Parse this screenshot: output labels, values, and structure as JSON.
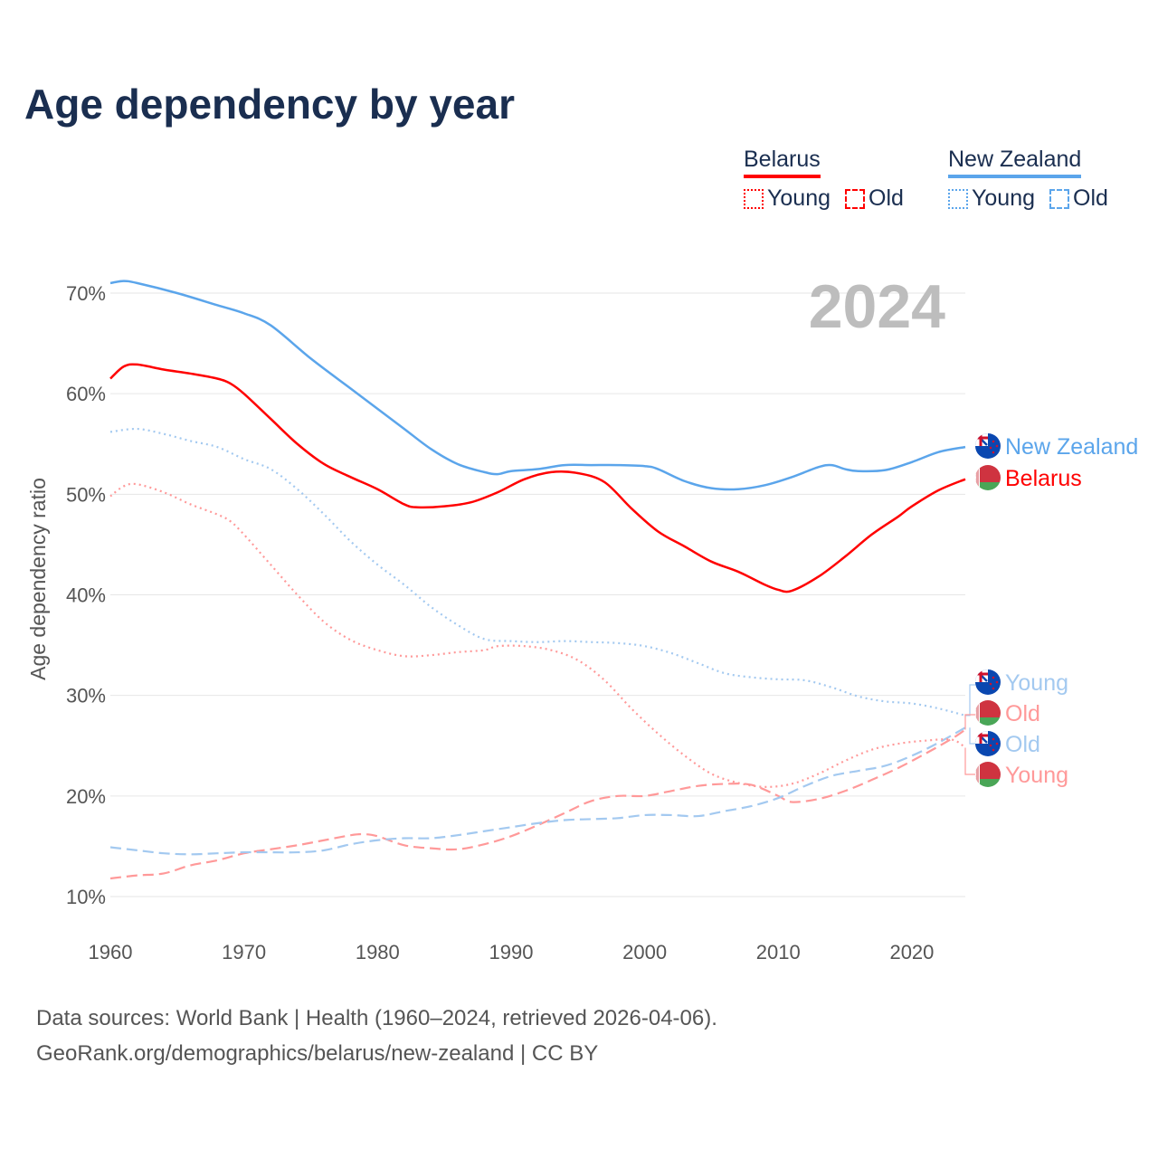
{
  "title": "Age dependency by year",
  "legend": {
    "groups": [
      {
        "name": "Belarus",
        "color": "#ff0000",
        "light": "#ff9999",
        "items": [
          "Young",
          "Old"
        ]
      },
      {
        "name": "New Zealand",
        "color": "#5ba5eb",
        "light": "#a3c9f0",
        "items": [
          "Young",
          "Old"
        ]
      }
    ]
  },
  "footer": {
    "line1": "Data sources: World Bank | Health (1960–2024, retrieved 2026-04-06).",
    "line2": "GeoRank.org/demographics/belarus/new-zealand | CC BY"
  },
  "end_labels": [
    {
      "text": "New Zealand",
      "country": "New Zealand",
      "color": "#5ba5eb"
    },
    {
      "text": "Belarus",
      "country": "Belarus",
      "color": "#ff0000"
    },
    {
      "text": "Young",
      "country": "New Zealand",
      "color": "#a3c9f0"
    },
    {
      "text": "Old",
      "country": "Belarus",
      "color": "#ff9999"
    },
    {
      "text": "Old",
      "country": "New Zealand",
      "color": "#a3c9f0"
    },
    {
      "text": "Young",
      "country": "Belarus",
      "color": "#ff9999"
    }
  ],
  "chart_data": {
    "type": "line",
    "title": "Age dependency by year",
    "year_label": "2024",
    "xlabel": "",
    "ylabel": "Age dependency ratio",
    "xlim": [
      1960,
      2024
    ],
    "ylim": [
      10,
      70
    ],
    "xticks": [
      1960,
      1970,
      1980,
      1990,
      2000,
      2010,
      2020
    ],
    "yticks": [
      "10%",
      "20%",
      "30%",
      "40%",
      "50%",
      "60%",
      "70%"
    ],
    "yticks_values": [
      10,
      20,
      30,
      40,
      50,
      60,
      70
    ],
    "grid": true,
    "legend_position": "top-right",
    "series": [
      {
        "name": "New Zealand",
        "style": "solid",
        "color": "#5ba5eb",
        "points": [
          [
            1960,
            71.0
          ],
          [
            1961,
            71.2
          ],
          [
            1962,
            71.0
          ],
          [
            1965,
            70.0
          ],
          [
            1968,
            68.8
          ],
          [
            1970,
            68.0
          ],
          [
            1972,
            66.8
          ],
          [
            1975,
            63.5
          ],
          [
            1978,
            60.5
          ],
          [
            1980,
            58.5
          ],
          [
            1982,
            56.5
          ],
          [
            1984,
            54.5
          ],
          [
            1986,
            53.0
          ],
          [
            1988,
            52.2
          ],
          [
            1989,
            52.0
          ],
          [
            1990,
            52.3
          ],
          [
            1992,
            52.5
          ],
          [
            1994,
            52.9
          ],
          [
            1996,
            52.9
          ],
          [
            1998,
            52.9
          ],
          [
            2000,
            52.8
          ],
          [
            2001,
            52.5
          ],
          [
            2003,
            51.3
          ],
          [
            2005,
            50.6
          ],
          [
            2007,
            50.5
          ],
          [
            2009,
            50.9
          ],
          [
            2011,
            51.7
          ],
          [
            2013,
            52.7
          ],
          [
            2014,
            52.9
          ],
          [
            2015,
            52.5
          ],
          [
            2016,
            52.3
          ],
          [
            2018,
            52.4
          ],
          [
            2020,
            53.2
          ],
          [
            2022,
            54.2
          ],
          [
            2024,
            54.7
          ]
        ]
      },
      {
        "name": "Belarus",
        "style": "solid",
        "color": "#ff0000",
        "points": [
          [
            1960,
            61.5
          ],
          [
            1961,
            62.7
          ],
          [
            1962,
            62.9
          ],
          [
            1964,
            62.4
          ],
          [
            1966,
            62.0
          ],
          [
            1968,
            61.5
          ],
          [
            1969,
            61.0
          ],
          [
            1970,
            60.0
          ],
          [
            1972,
            57.5
          ],
          [
            1974,
            55.0
          ],
          [
            1976,
            53.0
          ],
          [
            1978,
            51.7
          ],
          [
            1980,
            50.5
          ],
          [
            1982,
            49.0
          ],
          [
            1983,
            48.7
          ],
          [
            1985,
            48.8
          ],
          [
            1987,
            49.2
          ],
          [
            1989,
            50.2
          ],
          [
            1991,
            51.5
          ],
          [
            1993,
            52.2
          ],
          [
            1995,
            52.1
          ],
          [
            1997,
            51.2
          ],
          [
            1999,
            48.6
          ],
          [
            2001,
            46.3
          ],
          [
            2003,
            44.8
          ],
          [
            2005,
            43.3
          ],
          [
            2007,
            42.3
          ],
          [
            2009,
            41.0
          ],
          [
            2010,
            40.5
          ],
          [
            2011,
            40.4
          ],
          [
            2013,
            41.8
          ],
          [
            2015,
            43.8
          ],
          [
            2017,
            46.0
          ],
          [
            2019,
            47.8
          ],
          [
            2020,
            48.8
          ],
          [
            2022,
            50.4
          ],
          [
            2024,
            51.5
          ]
        ]
      },
      {
        "name": "New Zealand Young",
        "style": "dotted",
        "color": "#a3c9f0",
        "points": [
          [
            1960,
            56.2
          ],
          [
            1962,
            56.5
          ],
          [
            1964,
            56.0
          ],
          [
            1966,
            55.3
          ],
          [
            1968,
            54.7
          ],
          [
            1970,
            53.5
          ],
          [
            1972,
            52.5
          ],
          [
            1974,
            50.5
          ],
          [
            1976,
            48.0
          ],
          [
            1978,
            45.3
          ],
          [
            1980,
            43.0
          ],
          [
            1982,
            41.0
          ],
          [
            1984,
            38.8
          ],
          [
            1986,
            37.0
          ],
          [
            1988,
            35.6
          ],
          [
            1990,
            35.4
          ],
          [
            1992,
            35.3
          ],
          [
            1994,
            35.4
          ],
          [
            1996,
            35.3
          ],
          [
            1998,
            35.2
          ],
          [
            2000,
            34.9
          ],
          [
            2002,
            34.2
          ],
          [
            2004,
            33.2
          ],
          [
            2006,
            32.2
          ],
          [
            2008,
            31.8
          ],
          [
            2010,
            31.6
          ],
          [
            2012,
            31.5
          ],
          [
            2014,
            30.8
          ],
          [
            2016,
            29.9
          ],
          [
            2018,
            29.4
          ],
          [
            2020,
            29.2
          ],
          [
            2022,
            28.7
          ],
          [
            2024,
            28.0
          ]
        ]
      },
      {
        "name": "Belarus Young",
        "style": "dotted",
        "color": "#ff9999",
        "points": [
          [
            1960,
            49.8
          ],
          [
            1961,
            50.8
          ],
          [
            1962,
            51.0
          ],
          [
            1964,
            50.2
          ],
          [
            1966,
            49.0
          ],
          [
            1968,
            48.0
          ],
          [
            1969,
            47.3
          ],
          [
            1970,
            46.0
          ],
          [
            1972,
            43.0
          ],
          [
            1974,
            40.0
          ],
          [
            1976,
            37.3
          ],
          [
            1978,
            35.5
          ],
          [
            1980,
            34.5
          ],
          [
            1982,
            33.9
          ],
          [
            1984,
            34.0
          ],
          [
            1986,
            34.3
          ],
          [
            1988,
            34.5
          ],
          [
            1989,
            34.9
          ],
          [
            1991,
            34.9
          ],
          [
            1993,
            34.5
          ],
          [
            1995,
            33.5
          ],
          [
            1997,
            31.5
          ],
          [
            1999,
            28.7
          ],
          [
            2001,
            26.2
          ],
          [
            2003,
            24.0
          ],
          [
            2005,
            22.2
          ],
          [
            2007,
            21.3
          ],
          [
            2009,
            20.9
          ],
          [
            2011,
            21.2
          ],
          [
            2013,
            22.2
          ],
          [
            2015,
            23.5
          ],
          [
            2017,
            24.6
          ],
          [
            2019,
            25.2
          ],
          [
            2021,
            25.5
          ],
          [
            2023,
            25.6
          ],
          [
            2024,
            24.8
          ]
        ]
      },
      {
        "name": "New Zealand Old",
        "style": "dashed",
        "color": "#a3c9f0",
        "points": [
          [
            1960,
            14.9
          ],
          [
            1962,
            14.6
          ],
          [
            1964,
            14.3
          ],
          [
            1966,
            14.2
          ],
          [
            1968,
            14.3
          ],
          [
            1970,
            14.4
          ],
          [
            1972,
            14.4
          ],
          [
            1974,
            14.4
          ],
          [
            1976,
            14.6
          ],
          [
            1978,
            15.2
          ],
          [
            1980,
            15.6
          ],
          [
            1982,
            15.8
          ],
          [
            1984,
            15.8
          ],
          [
            1986,
            16.1
          ],
          [
            1988,
            16.5
          ],
          [
            1990,
            16.9
          ],
          [
            1992,
            17.3
          ],
          [
            1994,
            17.6
          ],
          [
            1996,
            17.7
          ],
          [
            1998,
            17.8
          ],
          [
            2000,
            18.1
          ],
          [
            2002,
            18.1
          ],
          [
            2004,
            18.0
          ],
          [
            2006,
            18.5
          ],
          [
            2008,
            19.0
          ],
          [
            2010,
            19.8
          ],
          [
            2012,
            21.0
          ],
          [
            2014,
            22.0
          ],
          [
            2016,
            22.5
          ],
          [
            2018,
            23.0
          ],
          [
            2020,
            24.0
          ],
          [
            2022,
            25.3
          ],
          [
            2024,
            26.8
          ]
        ]
      },
      {
        "name": "Belarus Old",
        "style": "dashed",
        "color": "#ff9999",
        "points": [
          [
            1960,
            11.8
          ],
          [
            1962,
            12.1
          ],
          [
            1964,
            12.3
          ],
          [
            1966,
            13.1
          ],
          [
            1968,
            13.6
          ],
          [
            1970,
            14.3
          ],
          [
            1972,
            14.7
          ],
          [
            1974,
            15.1
          ],
          [
            1976,
            15.6
          ],
          [
            1978,
            16.1
          ],
          [
            1979,
            16.2
          ],
          [
            1980,
            16.0
          ],
          [
            1982,
            15.1
          ],
          [
            1984,
            14.8
          ],
          [
            1986,
            14.7
          ],
          [
            1988,
            15.2
          ],
          [
            1990,
            16.0
          ],
          [
            1992,
            17.1
          ],
          [
            1994,
            18.3
          ],
          [
            1996,
            19.5
          ],
          [
            1998,
            20.0
          ],
          [
            2000,
            20.0
          ],
          [
            2002,
            20.5
          ],
          [
            2004,
            21.0
          ],
          [
            2006,
            21.2
          ],
          [
            2008,
            21.1
          ],
          [
            2010,
            20.0
          ],
          [
            2011,
            19.4
          ],
          [
            2013,
            19.7
          ],
          [
            2015,
            20.5
          ],
          [
            2017,
            21.6
          ],
          [
            2019,
            22.8
          ],
          [
            2021,
            24.2
          ],
          [
            2023,
            25.7
          ],
          [
            2024,
            26.6
          ]
        ]
      }
    ]
  }
}
